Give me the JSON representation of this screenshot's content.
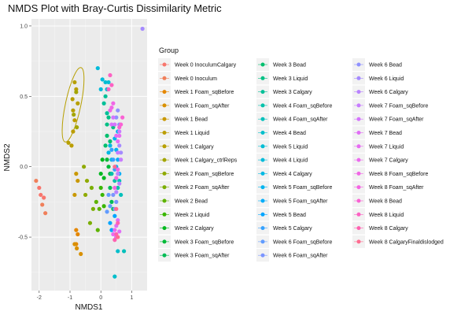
{
  "chart_data": {
    "type": "scatter",
    "title": "NMDS Plot with Bray-Curtis Dissimilarity Metric",
    "xlabel": "NMDS1",
    "ylabel": "NMDS2",
    "xlim": [
      -2.25,
      1.5
    ],
    "ylim": [
      -0.88,
      1.05
    ],
    "x_ticks": [
      -2,
      -1,
      0,
      1
    ],
    "y_ticks": [
      -0.5,
      0.0,
      0.5,
      1.0
    ],
    "x_tick_labels": [
      "-2",
      "-1",
      "0",
      "1"
    ],
    "y_tick_labels": [
      "-0.5",
      "0.0",
      "0.5",
      "1.0"
    ],
    "grid": true,
    "panel_background": "#ebebeb",
    "legend_position": "right",
    "legend_title": "Group",
    "ellipse": {
      "series": "Week 1 Calgary",
      "color": "#b79f00",
      "center": [
        -0.9,
        0.44
      ],
      "rx": 0.25,
      "ry": 0.27,
      "angle_deg": 12
    },
    "series": [
      {
        "name": "Week 0 InoculumCalgary",
        "color": "#F8766D",
        "points": [
          [
            -2.0,
            -0.15
          ],
          [
            -1.95,
            -0.2
          ],
          [
            -1.85,
            -0.22
          ]
        ]
      },
      {
        "name": "Week 0 Inoculum",
        "color": "#F07F5A",
        "points": [
          [
            -2.1,
            -0.1
          ],
          [
            -1.9,
            -0.27
          ],
          [
            -1.8,
            -0.33
          ]
        ]
      },
      {
        "name": "Week 1 Foam_sqBefore",
        "color": "#E58700",
        "points": [
          [
            -0.8,
            -0.45
          ],
          [
            -0.75,
            -0.48
          ],
          [
            -0.8,
            -0.55
          ]
        ]
      },
      {
        "name": "Week 1 Foam_sqAfter",
        "color": "#D89000",
        "points": [
          [
            -0.85,
            -0.55
          ],
          [
            -0.78,
            -0.58
          ],
          [
            -0.65,
            -0.62
          ]
        ]
      },
      {
        "name": "Week 1 Bead",
        "color": "#C99800",
        "points": [
          [
            -0.8,
            -0.05
          ],
          [
            -0.75,
            -0.1
          ],
          [
            -0.85,
            -0.2
          ]
        ]
      },
      {
        "name": "Week 1 Liquid",
        "color": "#BB9D00",
        "points": [
          [
            -0.95,
            0.15
          ],
          [
            -0.9,
            0.25
          ],
          [
            -0.85,
            0.33
          ]
        ]
      },
      {
        "name": "Week 1 Calgary",
        "color": "#B79F00",
        "points": [
          [
            -1.05,
            0.17
          ],
          [
            -0.92,
            0.48
          ],
          [
            -0.85,
            0.6
          ],
          [
            -0.8,
            0.55
          ],
          [
            -0.75,
            0.45
          ],
          [
            -0.9,
            0.4
          ]
        ]
      },
      {
        "name": "Week 1 Calgary_ctrlReps",
        "color": "#A3A500",
        "points": [
          [
            -0.8,
            0.53
          ],
          [
            -0.88,
            0.37
          ],
          [
            -0.78,
            0.28
          ]
        ]
      },
      {
        "name": "Week 2 Foam_sqBefore",
        "color": "#8FAA00",
        "points": [
          [
            -0.55,
            0.0
          ],
          [
            -0.45,
            -0.1
          ],
          [
            -0.5,
            -0.2
          ]
        ]
      },
      {
        "name": "Week 2 Foam_sqAfter",
        "color": "#7AAE00",
        "points": [
          [
            -0.3,
            -0.15
          ],
          [
            -0.25,
            -0.3
          ],
          [
            -0.35,
            -0.4
          ]
        ]
      },
      {
        "name": "Week 2 Bead",
        "color": "#5EB300",
        "points": [
          [
            -0.15,
            -0.25
          ],
          [
            -0.05,
            -0.3
          ],
          [
            -0.1,
            -0.45
          ]
        ]
      },
      {
        "name": "Week 2 Liquid",
        "color": "#39B600",
        "points": [
          [
            0.0,
            -0.15
          ],
          [
            0.05,
            -0.2
          ],
          [
            0.1,
            -0.28
          ]
        ]
      },
      {
        "name": "Week 2 Calgary",
        "color": "#00B81F",
        "points": [
          [
            0.05,
            0.05
          ],
          [
            0.0,
            -0.05
          ],
          [
            0.1,
            -0.08
          ]
        ]
      },
      {
        "name": "Week 3 Foam_sqBefore",
        "color": "#00BA38",
        "points": [
          [
            0.2,
            0.05
          ],
          [
            0.25,
            0.0
          ],
          [
            0.3,
            -0.05
          ]
        ]
      },
      {
        "name": "Week 3 Foam_sqAfter",
        "color": "#00BC55",
        "points": [
          [
            0.3,
            -0.15
          ],
          [
            0.35,
            -0.25
          ],
          [
            0.4,
            -0.3
          ]
        ]
      },
      {
        "name": "Week 3 Bead",
        "color": "#00BF6E",
        "points": [
          [
            0.15,
            0.15
          ],
          [
            0.2,
            0.22
          ],
          [
            0.3,
            0.18
          ]
        ]
      },
      {
        "name": "Week 3 Liquid",
        "color": "#00C084",
        "points": [
          [
            0.2,
            0.3
          ],
          [
            0.25,
            0.35
          ],
          [
            0.4,
            0.28
          ]
        ]
      },
      {
        "name": "Week 3 Calgary",
        "color": "#00C098",
        "points": [
          [
            0.1,
            0.45
          ],
          [
            0.15,
            0.5
          ],
          [
            0.2,
            0.38
          ]
        ]
      },
      {
        "name": "Week 4 Foam_sqBefore",
        "color": "#00C1AA",
        "points": [
          [
            0.35,
            -0.05
          ],
          [
            0.45,
            -0.1
          ],
          [
            0.55,
            -0.15
          ]
        ]
      },
      {
        "name": "Week 4 Foam_sqAfter",
        "color": "#00C0BB",
        "points": [
          [
            0.6,
            -0.1
          ],
          [
            0.65,
            -0.2
          ],
          [
            0.75,
            -0.6
          ]
        ]
      },
      {
        "name": "Week 4 Bead",
        "color": "#00BECB",
        "points": [
          [
            0.45,
            -0.78
          ],
          [
            0.55,
            -0.6
          ],
          [
            0.5,
            -0.5
          ]
        ]
      },
      {
        "name": "Week 5 Liquid",
        "color": "#00BDD4",
        "points": [
          [
            0.2,
            0.55
          ],
          [
            0.15,
            0.6
          ],
          [
            0.25,
            0.6
          ]
        ]
      },
      {
        "name": "Week 4 Liquid",
        "color": "#00BBDA",
        "points": [
          [
            0.0,
            0.55
          ],
          [
            0.05,
            0.62
          ],
          [
            -0.1,
            0.7
          ]
        ]
      },
      {
        "name": "Week 4 Calgary",
        "color": "#00B8E3",
        "points": [
          [
            0.25,
            0.1
          ],
          [
            0.3,
            0.15
          ],
          [
            0.35,
            0.05
          ]
        ]
      },
      {
        "name": "Week 5 Foam_sqBefore",
        "color": "#00B4EF",
        "points": [
          [
            0.45,
            0.2
          ],
          [
            0.5,
            0.12
          ],
          [
            0.55,
            0.25
          ]
        ]
      },
      {
        "name": "Week 5 Foam_sqAfter",
        "color": "#00ADFA",
        "points": [
          [
            0.5,
            0.0
          ],
          [
            0.55,
            0.05
          ],
          [
            0.6,
            -0.05
          ]
        ]
      },
      {
        "name": "Week 5 Bead",
        "color": "#00A5FF",
        "points": [
          [
            0.3,
            -0.4
          ],
          [
            0.35,
            -0.45
          ],
          [
            0.45,
            -0.35
          ]
        ]
      },
      {
        "name": "Week 5 Calgary",
        "color": "#35A2FF",
        "points": [
          [
            0.4,
            0.05
          ],
          [
            0.45,
            -0.02
          ],
          [
            0.35,
            0.12
          ]
        ]
      },
      {
        "name": "Week 6 Foam_sqBefore",
        "color": "#619CFF",
        "points": [
          [
            0.25,
            -0.2
          ],
          [
            0.3,
            -0.28
          ],
          [
            0.2,
            -0.32
          ]
        ]
      },
      {
        "name": "Week 6 Foam_sqAfter",
        "color": "#7B95FF",
        "points": [
          [
            0.4,
            -0.2
          ],
          [
            0.45,
            -0.3
          ],
          [
            0.5,
            -0.25
          ]
        ]
      },
      {
        "name": "Week 6 Bead",
        "color": "#8F91FF",
        "points": [
          [
            0.55,
            0.4
          ],
          [
            0.6,
            0.3
          ],
          [
            0.5,
            0.35
          ]
        ]
      },
      {
        "name": "Week 6 Liquid",
        "color": "#A58AFF",
        "points": [
          [
            1.35,
            0.98
          ],
          [
            0.65,
            0.1
          ],
          [
            0.6,
            0.15
          ]
        ]
      },
      {
        "name": "Week 6 Calgary",
        "color": "#B983FF",
        "points": [
          [
            0.55,
            -0.05
          ],
          [
            0.6,
            -0.12
          ],
          [
            0.5,
            -0.18
          ]
        ]
      },
      {
        "name": "Week 7 Foam_sqBefore",
        "color": "#C77CFF",
        "points": [
          [
            0.6,
            0.25
          ],
          [
            0.65,
            0.05
          ],
          [
            0.55,
            0.1
          ]
        ]
      },
      {
        "name": "Week 7 Foam_sqAfter",
        "color": "#D574FD",
        "points": [
          [
            0.45,
            0.3
          ],
          [
            0.4,
            0.35
          ],
          [
            0.35,
            0.3
          ]
        ]
      },
      {
        "name": "Week 7 Bead",
        "color": "#E16EF6",
        "points": [
          [
            0.5,
            -0.42
          ],
          [
            0.55,
            -0.38
          ],
          [
            0.6,
            -0.46
          ]
        ]
      },
      {
        "name": "Week 7 Liquid",
        "color": "#E76BF3",
        "points": [
          [
            0.55,
            0.18
          ],
          [
            0.6,
            0.22
          ],
          [
            0.5,
            0.22
          ]
        ]
      },
      {
        "name": "Week 7 Calgary",
        "color": "#EC69EF",
        "points": [
          [
            0.45,
            -0.45
          ],
          [
            0.5,
            -0.5
          ],
          [
            0.4,
            -0.48
          ]
        ]
      },
      {
        "name": "Week 8 Foam_sqBefore",
        "color": "#F166E6",
        "points": [
          [
            0.35,
            0.42
          ],
          [
            0.3,
            0.4
          ],
          [
            0.4,
            0.45
          ]
        ]
      },
      {
        "name": "Week 8 Foam_sqAfter",
        "color": "#F564E3",
        "points": [
          [
            0.45,
            -0.15
          ],
          [
            0.5,
            -0.08
          ],
          [
            0.55,
            -0.02
          ]
        ]
      },
      {
        "name": "Week 8 Bead",
        "color": "#FA62D4",
        "points": [
          [
            0.65,
            0.3
          ],
          [
            0.7,
            0.35
          ],
          [
            0.6,
            0.28
          ]
        ]
      },
      {
        "name": "Week 8 Liquid",
        "color": "#FD61C3",
        "points": [
          [
            0.3,
            0.65
          ],
          [
            0.25,
            0.55
          ],
          [
            0.35,
            0.58
          ]
        ]
      },
      {
        "name": "Week 8 Calgary",
        "color": "#FF61B0",
        "points": [
          [
            0.45,
            -0.52
          ],
          [
            0.5,
            -0.48
          ],
          [
            0.55,
            -0.4
          ]
        ]
      },
      {
        "name": "Week 8 CalgaryFinaldislodged",
        "color": "#FF6C91",
        "points": [
          [
            0.55,
            -0.5
          ],
          [
            0.5,
            -0.3
          ],
          [
            0.45,
            0.0
          ]
        ]
      }
    ]
  }
}
